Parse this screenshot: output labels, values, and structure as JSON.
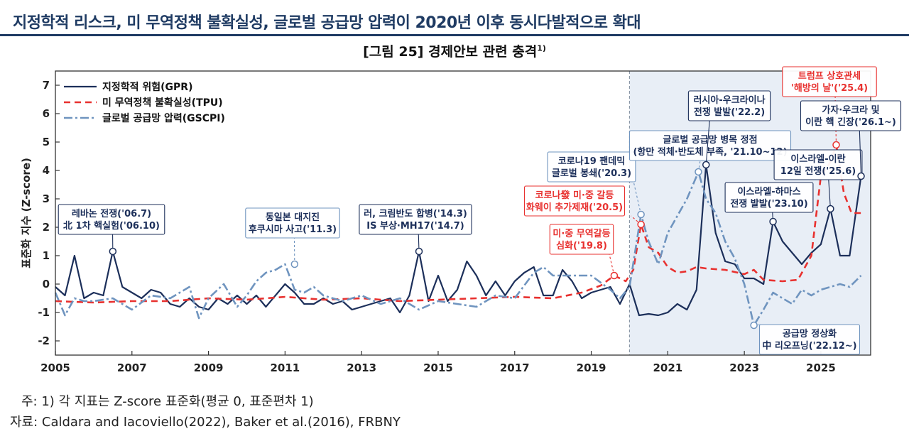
{
  "headline": "지정학적 리스크, 미 무역정책 불확실성, 글로벌 공급망 압력이 2020년 이후 동시다발적으로 확대",
  "figure_title": "[그림 25] 경제안보 관련 충격",
  "figure_title_sup": "1)",
  "note": "주: 1) 각 지표는 Z-score 표준화(평균 0, 표준편차 1)",
  "source": "자료: Caldara and Iacoviello(2022), Baker et al.(2016), FRBNY",
  "colors": {
    "gpr": "#1c2f5a",
    "tpu": "#e8312f",
    "gscpi": "#6f94bf",
    "shade": "#e8eef6"
  },
  "chart_data": {
    "type": "line",
    "ylabel": "표준화 지수 (Z-score)",
    "xlim": [
      2005,
      2026.3
    ],
    "ylim": [
      -2.5,
      7.5
    ],
    "x_ticks": [
      2005,
      2007,
      2009,
      2011,
      2013,
      2015,
      2017,
      2019,
      2021,
      2023,
      2025
    ],
    "y_ticks": [
      -2,
      -1,
      0,
      1,
      2,
      3,
      4,
      5,
      6,
      7
    ],
    "shaded_from": 2020,
    "legend_position": "top-left",
    "series": [
      {
        "name": "지정학적 위험(GPR)",
        "key": "gpr",
        "style": "solid",
        "x": [
          2005,
          2005.25,
          2005.5,
          2005.75,
          2006,
          2006.25,
          2006.5,
          2006.75,
          2007,
          2007.25,
          2007.5,
          2007.75,
          2008,
          2008.25,
          2008.5,
          2008.75,
          2009,
          2009.25,
          2009.5,
          2009.75,
          2010,
          2010.25,
          2010.5,
          2010.75,
          2011,
          2011.25,
          2011.5,
          2011.75,
          2012,
          2012.25,
          2012.5,
          2012.75,
          2013,
          2013.25,
          2013.5,
          2013.75,
          2014,
          2014.25,
          2014.5,
          2014.75,
          2015,
          2015.25,
          2015.5,
          2015.75,
          2016,
          2016.25,
          2016.5,
          2016.75,
          2017,
          2017.25,
          2017.5,
          2017.75,
          2018,
          2018.25,
          2018.5,
          2018.75,
          2019,
          2019.25,
          2019.5,
          2019.75,
          2020,
          2020.25,
          2020.5,
          2020.75,
          2021,
          2021.25,
          2021.5,
          2021.75,
          2022,
          2022.25,
          2022.5,
          2022.75,
          2023,
          2023.25,
          2023.5,
          2023.75,
          2024,
          2024.25,
          2024.5,
          2024.75,
          2025,
          2025.25,
          2025.5,
          2025.75,
          2026.05
        ],
        "values": [
          -0.1,
          -0.4,
          1.0,
          -0.5,
          -0.3,
          -0.4,
          1.15,
          -0.1,
          -0.3,
          -0.5,
          -0.2,
          -0.3,
          -0.7,
          -0.8,
          -0.5,
          -0.8,
          -0.9,
          -0.5,
          -0.7,
          -0.4,
          -0.7,
          -0.4,
          -0.8,
          -0.4,
          0.0,
          -0.3,
          -0.7,
          -0.7,
          -0.5,
          -0.7,
          -0.6,
          -0.9,
          -0.8,
          -0.7,
          -0.6,
          -0.5,
          -1.0,
          -0.4,
          1.15,
          -0.6,
          0.3,
          -0.6,
          -0.2,
          0.8,
          0.3,
          -0.4,
          0.1,
          -0.4,
          0.1,
          0.4,
          0.6,
          -0.4,
          -0.4,
          0.5,
          0.1,
          -0.5,
          -0.3,
          -0.2,
          -0.1,
          -0.7,
          0.0,
          -1.1,
          -1.05,
          -1.1,
          -1.0,
          -0.7,
          -0.9,
          -0.2,
          4.2,
          1.8,
          0.8,
          0.7,
          0.2,
          0.2,
          0.0,
          2.2,
          1.5,
          1.1,
          0.7,
          1.1,
          1.4,
          2.65,
          1.0,
          1.0,
          3.8
        ]
      },
      {
        "name": "미 무역정책 불확실성(TPU)",
        "key": "tpu",
        "style": "dash",
        "x": [
          2005,
          2006,
          2007,
          2008,
          2009,
          2010,
          2011,
          2012,
          2013,
          2014,
          2015,
          2016,
          2017,
          2018,
          2018.75,
          2019.25,
          2019.6,
          2019.9,
          2020.1,
          2020.3,
          2020.5,
          2020.75,
          2021,
          2021.25,
          2021.5,
          2021.75,
          2022,
          2022.5,
          2023,
          2023.25,
          2023.5,
          2024,
          2024.4,
          2024.75,
          2025,
          2025.25,
          2025.4,
          2025.6,
          2025.8,
          2026.05
        ],
        "values": [
          -0.6,
          -0.65,
          -0.6,
          -0.6,
          -0.5,
          -0.55,
          -0.45,
          -0.55,
          -0.5,
          -0.6,
          -0.55,
          -0.5,
          -0.45,
          -0.5,
          -0.3,
          -0.05,
          0.3,
          0.1,
          0.5,
          2.1,
          1.3,
          1.1,
          0.6,
          0.4,
          0.45,
          0.6,
          0.55,
          0.5,
          0.35,
          0.5,
          0.15,
          0.1,
          0.15,
          1.0,
          3.8,
          4.3,
          4.9,
          3.2,
          2.5,
          2.5
        ]
      },
      {
        "name": "글로벌 공급망 압력(GSCPI)",
        "key": "gscpi",
        "style": "dashdot",
        "x": [
          2005,
          2005.25,
          2005.5,
          2005.75,
          2006,
          2006.5,
          2007,
          2007.5,
          2008,
          2008.5,
          2008.75,
          2009,
          2009.4,
          2009.75,
          2010,
          2010.25,
          2010.5,
          2010.75,
          2011,
          2011.25,
          2011.5,
          2011.75,
          2012,
          2012.5,
          2013,
          2013.5,
          2014,
          2014.5,
          2015,
          2015.5,
          2016,
          2016.5,
          2017,
          2017.5,
          2017.75,
          2018,
          2018.5,
          2019,
          2019.5,
          2019.75,
          2020,
          2020.3,
          2020.5,
          2020.75,
          2021,
          2021.5,
          2021.8,
          2022,
          2022.25,
          2022.5,
          2022.75,
          2023,
          2023.25,
          2023.5,
          2023.75,
          2024,
          2024.25,
          2024.5,
          2024.75,
          2025,
          2025.5,
          2025.75,
          2026.05
        ],
        "values": [
          -0.3,
          -1.1,
          -0.5,
          -0.6,
          -0.6,
          -0.5,
          -0.9,
          -0.4,
          -0.5,
          -0.1,
          -1.2,
          -0.5,
          0.0,
          -0.8,
          -0.4,
          0.1,
          0.4,
          0.5,
          0.7,
          -0.2,
          -0.3,
          -0.1,
          -0.4,
          -0.6,
          -0.4,
          -0.7,
          -0.5,
          -0.9,
          -0.6,
          -0.7,
          -0.8,
          -0.4,
          -0.5,
          0.4,
          0.6,
          0.3,
          0.3,
          0.3,
          -0.2,
          -0.5,
          -0.1,
          2.45,
          1.5,
          0.7,
          1.8,
          3.0,
          3.95,
          3.0,
          2.5,
          1.5,
          0.9,
          0.0,
          -1.45,
          -0.9,
          -0.3,
          -0.5,
          -0.7,
          -0.2,
          -0.4,
          -0.2,
          0.0,
          -0.1,
          0.3
        ]
      }
    ],
    "annotations": [
      {
        "series": "gpr",
        "x": 2006.5,
        "y": 1.15,
        "lines": [
          "레바논 전쟁('06.7)",
          "北 1차 핵실험('06.10)"
        ],
        "color": "dark"
      },
      {
        "series": "gscpi",
        "x": 2011.25,
        "y": 0.7,
        "lines": [
          "동일본 대지진",
          "후쿠시마 사고('11.3)"
        ],
        "color": "light"
      },
      {
        "series": "gpr",
        "x": 2014.5,
        "y": 1.15,
        "lines": [
          "러, 크림반도 합병('14.3)",
          "IS 부상·MH17('14.7)"
        ],
        "color": "dark"
      },
      {
        "series": "tpu",
        "x": 2019.6,
        "y": 0.3,
        "lines": [
          "미·중 무역갈등",
          "심화('19.8)"
        ],
        "color": "red"
      },
      {
        "series": "tpu",
        "x": 2020.3,
        "y": 2.1,
        "lines": [
          "코로나發 미·중 갈등",
          "화웨이 추가제재('20.5)"
        ],
        "color": "red"
      },
      {
        "series": "gscpi",
        "x": 2020.3,
        "y": 2.45,
        "lines": [
          "코로나19 팬데믹",
          "글로벌 봉쇄('20.3)"
        ],
        "color": "light"
      },
      {
        "series": "gscpi",
        "x": 2021.8,
        "y": 3.95,
        "lines": [
          "글로벌 공급망 병목 정점",
          "(항만 적체·반도체 부족, '21.10~12)"
        ],
        "color": "light"
      },
      {
        "series": "gpr",
        "x": 2022.0,
        "y": 4.2,
        "lines": [
          "러시아-우크라이나",
          "전쟁 발발('22.2)"
        ],
        "color": "dark"
      },
      {
        "series": "gpr",
        "x": 2023.75,
        "y": 2.2,
        "lines": [
          "이스라엘-하마스",
          "전쟁 발발('23.10)"
        ],
        "color": "dark"
      },
      {
        "series": "gscpi",
        "x": 2023.25,
        "y": -1.45,
        "lines": [
          "공급망 정상화",
          "中 리오프닝('22.12~)"
        ],
        "color": "light"
      },
      {
        "series": "tpu",
        "x": 2025.4,
        "y": 4.9,
        "lines": [
          "트럼프 상호관세",
          "'해방의 날'('25.4)"
        ],
        "color": "red"
      },
      {
        "series": "gpr",
        "x": 2025.25,
        "y": 2.65,
        "lines": [
          "이스라엘-이란",
          "12일 전쟁('25.6)"
        ],
        "color": "dark"
      },
      {
        "series": "gpr",
        "x": 2026.05,
        "y": 3.8,
        "lines": [
          "가자·우크라 및",
          "이란 핵 긴장('26.1~)"
        ],
        "color": "dark"
      }
    ]
  }
}
